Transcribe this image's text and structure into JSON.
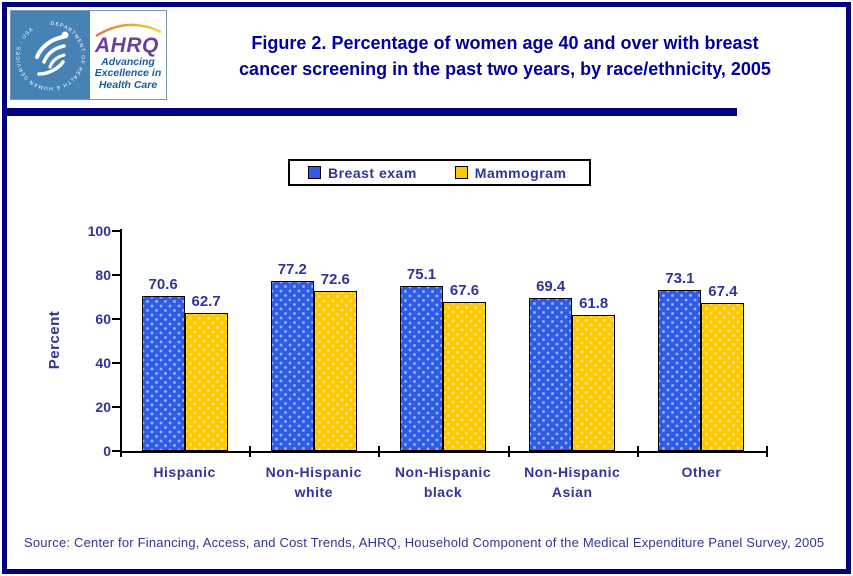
{
  "header": {
    "logo": {
      "seal_text": "DEPARTMENT OF HEALTH & HUMAN SERVICES · USA",
      "ahrq_acronym": "AHRQ",
      "tagline_lines": [
        "Advancing",
        "Excellence in",
        "Health Care"
      ]
    },
    "title_line1": "Figure 2. Percentage  of women age 40 and over with breast",
    "title_line2": "cancer screening in the past two years, by race/ethnicity, 2005"
  },
  "chart_data": {
    "type": "bar",
    "title": "Figure 2. Percentage of women age 40 and over with breast cancer screening in the past two years, by race/ethnicity, 2005",
    "categories": [
      "Hispanic",
      "Non-Hispanic\nwhite",
      "Non-Hispanic\nblack",
      "Non-Hispanic\nAsian",
      "Other"
    ],
    "series": [
      {
        "name": "Breast exam",
        "color": "#2E5CE6",
        "values": [
          70.6,
          77.2,
          75.1,
          69.4,
          73.1
        ]
      },
      {
        "name": "Mammogram",
        "color": "#FFC800",
        "values": [
          62.7,
          72.6,
          67.6,
          61.8,
          67.4
        ]
      }
    ],
    "xlabel": "",
    "ylabel": "Percent",
    "ylim": [
      0,
      100
    ],
    "yticks": [
      0,
      20,
      40,
      60,
      80,
      100
    ],
    "grid": false,
    "legend_position": "top",
    "value_labels": true
  },
  "footer": {
    "source": "Source: Center for Financing, Access, and Cost Trends, AHRQ, Household Component of the Medical Expenditure Panel Survey, 2005"
  },
  "colors": {
    "page_border_navy": "#000080",
    "title_text": "#000099",
    "chart_text": "#333399",
    "seal_background": "#4682B4",
    "ahrq_purple": "#6B3FA0",
    "tagline_blue": "#1A5DA6"
  }
}
